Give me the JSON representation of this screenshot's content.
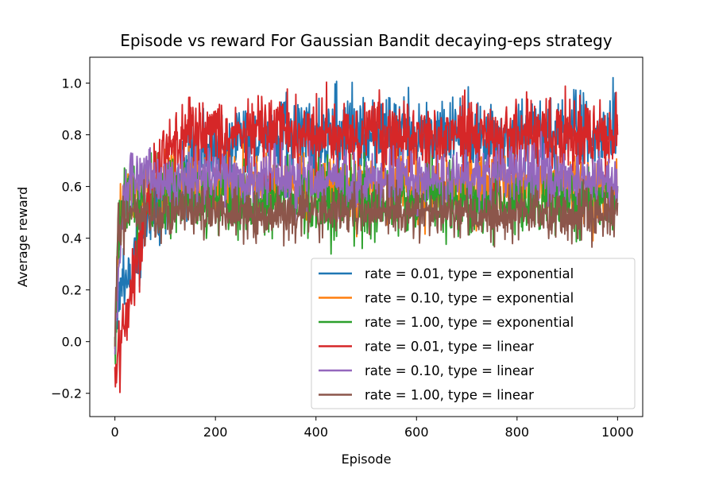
{
  "chart_data": {
    "type": "line",
    "title": "Episode vs reward For Gaussian Bandit decaying-eps strategy",
    "xlabel": "Episode",
    "ylabel": "Average reward",
    "xlim": [
      -50,
      1050
    ],
    "ylim": [
      -0.29,
      1.1
    ],
    "xticks": [
      0,
      200,
      400,
      600,
      800,
      1000
    ],
    "yticks": [
      -0.2,
      0.0,
      0.2,
      0.4,
      0.6,
      0.8,
      1.0
    ],
    "ytick_labels": [
      "−0.2",
      "0.0",
      "0.2",
      "0.4",
      "0.6",
      "0.8",
      "1.0"
    ],
    "legend_position": "lower-right",
    "grid": false,
    "episodes": 1000,
    "series": [
      {
        "name": "rate = 0.01, type = exponential",
        "color": "#1f77b4",
        "x": [
          0,
          10,
          25,
          50,
          75,
          100,
          125,
          150,
          175,
          200,
          250,
          300,
          400,
          500,
          600,
          700,
          800,
          900,
          1000
        ],
        "y": [
          0.0,
          0.15,
          0.28,
          0.38,
          0.5,
          0.55,
          0.62,
          0.68,
          0.73,
          0.76,
          0.78,
          0.79,
          0.8,
          0.8,
          0.8,
          0.8,
          0.8,
          0.8,
          0.8
        ],
        "noise": 0.07,
        "min": 0.05,
        "max": 1.04
      },
      {
        "name": "rate = 0.10, type = exponential",
        "color": "#ff7f0e",
        "x": [
          0,
          5,
          15,
          30,
          60,
          100,
          200,
          400,
          600,
          800,
          1000
        ],
        "y": [
          0.0,
          0.35,
          0.55,
          0.6,
          0.6,
          0.6,
          0.6,
          0.6,
          0.6,
          0.6,
          0.6
        ],
        "noise": 0.06,
        "min": -0.12,
        "max": 0.78
      },
      {
        "name": "rate = 1.00, type = exponential",
        "color": "#2ca02c",
        "x": [
          0,
          5,
          15,
          30,
          60,
          100,
          200,
          400,
          600,
          800,
          1000
        ],
        "y": [
          0.0,
          0.4,
          0.52,
          0.55,
          0.55,
          0.55,
          0.55,
          0.55,
          0.55,
          0.55,
          0.55
        ],
        "noise": 0.07,
        "min": -0.1,
        "max": 0.73
      },
      {
        "name": "rate = 0.01, type = linear",
        "color": "#d62728",
        "x": [
          0,
          5,
          15,
          30,
          50,
          70,
          100,
          150,
          200,
          400,
          600,
          800,
          1000
        ],
        "y": [
          -0.1,
          -0.05,
          0.05,
          0.2,
          0.35,
          0.6,
          0.75,
          0.8,
          0.8,
          0.8,
          0.8,
          0.8,
          0.8
        ],
        "noise": 0.07,
        "min": -0.23,
        "max": 1.04
      },
      {
        "name": "rate = 0.10, type = linear",
        "color": "#9467bd",
        "x": [
          0,
          5,
          15,
          30,
          60,
          100,
          200,
          400,
          600,
          800,
          1000
        ],
        "y": [
          0.0,
          0.2,
          0.5,
          0.62,
          0.63,
          0.63,
          0.63,
          0.63,
          0.63,
          0.63,
          0.63
        ],
        "noise": 0.06,
        "min": -0.05,
        "max": 0.85
      },
      {
        "name": "rate = 1.00, type = linear",
        "color": "#8c564b",
        "x": [
          0,
          5,
          15,
          30,
          60,
          100,
          200,
          400,
          600,
          800,
          1000
        ],
        "y": [
          0.0,
          0.4,
          0.48,
          0.5,
          0.5,
          0.5,
          0.5,
          0.5,
          0.5,
          0.5,
          0.5
        ],
        "noise": 0.05,
        "min": -0.05,
        "max": 0.7
      }
    ]
  }
}
